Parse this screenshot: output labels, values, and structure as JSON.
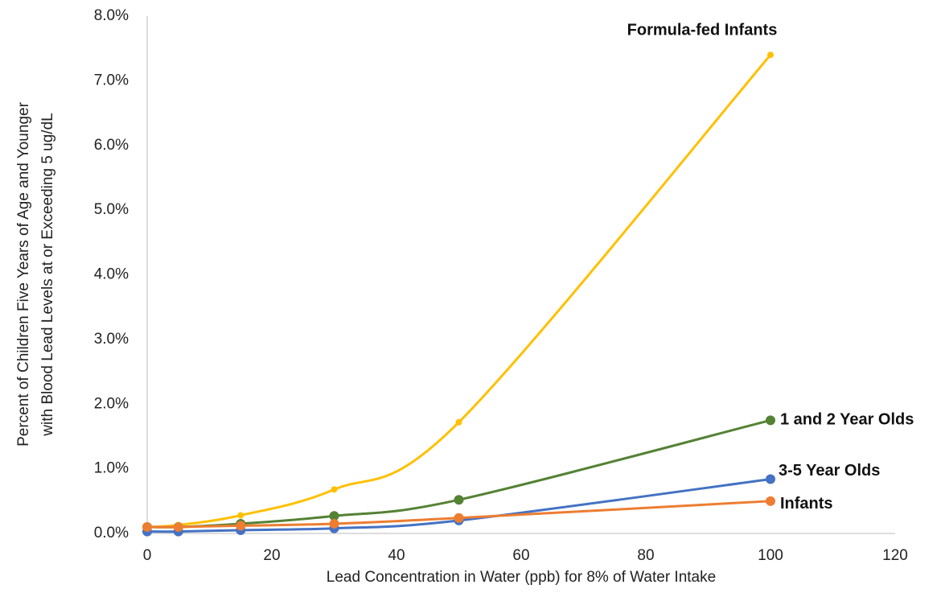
{
  "chart_data": {
    "type": "line",
    "x_label": "Lead Concentration in Water (ppb) for 8% of Water Intake",
    "y_label": [
      "Percent of Children Five Years of Age and Younger",
      "with Blood Lead  Levels at or Exceeding 5 ug/dL"
    ],
    "x": [
      0,
      5,
      15,
      30,
      50,
      100
    ],
    "series": [
      {
        "name": "Formula-fed Infants",
        "color": "#ffc000",
        "marker": "small",
        "values": [
          0.1,
          0.13,
          0.28,
          0.68,
          1.72,
          7.4
        ]
      },
      {
        "name": "1 and 2 Year Olds",
        "color": "#548235",
        "marker": "large",
        "values": [
          0.1,
          0.1,
          0.15,
          0.27,
          0.52,
          1.75
        ]
      },
      {
        "name": "3-5 Year Olds",
        "color": "#4472c4",
        "marker": "large",
        "values": [
          0.03,
          0.03,
          0.05,
          0.08,
          0.2,
          0.84
        ]
      },
      {
        "name": "Infants",
        "color": "#ed7d31",
        "marker": "large",
        "values": [
          0.1,
          0.1,
          0.12,
          0.15,
          0.24,
          0.5
        ]
      }
    ],
    "xlim": [
      0,
      120
    ],
    "xticks": [
      0,
      20,
      40,
      60,
      80,
      100,
      120
    ],
    "ylim": [
      0,
      8
    ],
    "yticks": [
      {
        "value": 0,
        "label": "0.0%"
      },
      {
        "value": 1,
        "label": "1.0%"
      },
      {
        "value": 2,
        "label": "2.0%"
      },
      {
        "value": 3,
        "label": "3.0%"
      },
      {
        "value": 4,
        "label": "4.0%"
      },
      {
        "value": 5,
        "label": "5.0%"
      },
      {
        "value": 6,
        "label": "6.0%"
      },
      {
        "value": 7,
        "label": "7.0%"
      },
      {
        "value": 8,
        "label": "8.0%"
      }
    ],
    "grid": false
  }
}
